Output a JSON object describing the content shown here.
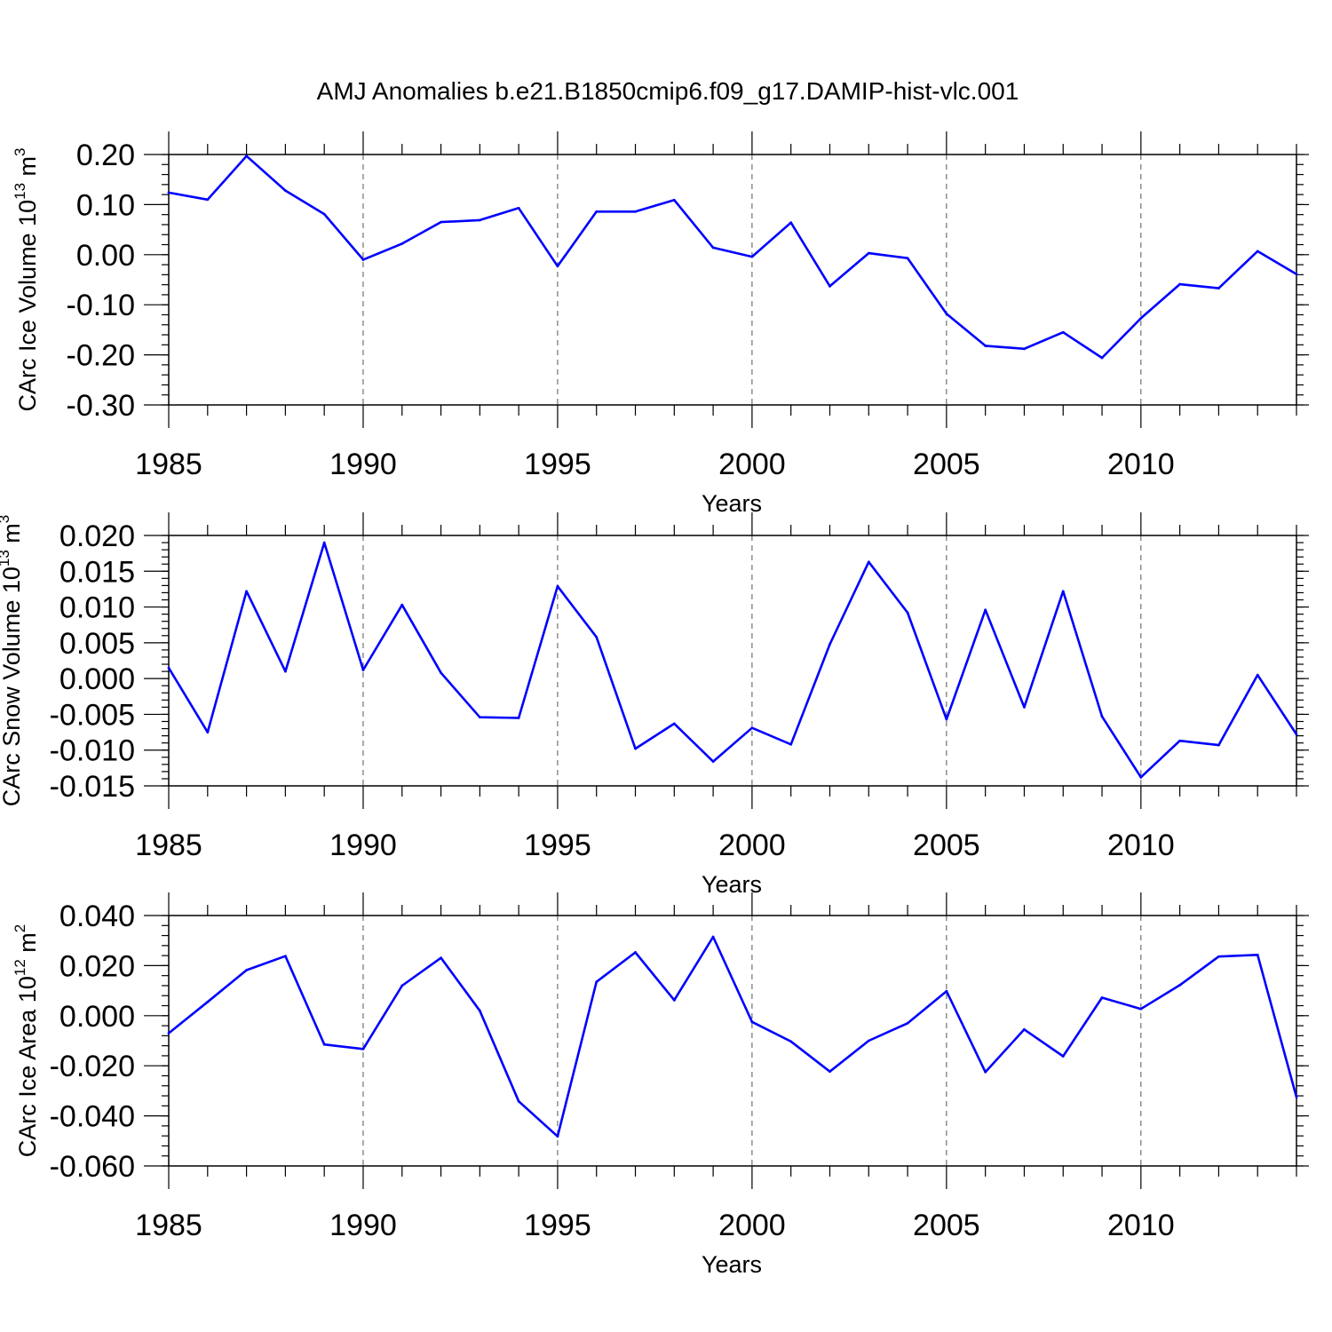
{
  "figure_title": "AMJ Anomalies b.e21.B1850cmip6.f09_g17.DAMIP-hist-vlc.001",
  "line_color": "#0000ff",
  "chart_data": [
    {
      "type": "line",
      "ylabel_main": "CArc Ice Volume 10",
      "ylabel_exp": "13",
      "ylabel_unit": " m",
      "ylabel_unit_exp": "3",
      "xlabel": "Years",
      "xlim": [
        1985,
        2014
      ],
      "ylim": [
        -0.3,
        0.2
      ],
      "xticks": [
        1985,
        1990,
        1995,
        2000,
        2005,
        2010
      ],
      "xtick_labels": [
        "1985",
        "1990",
        "1995",
        "2000",
        "2005",
        "2010"
      ],
      "yticks": [
        -0.3,
        -0.2,
        -0.1,
        0.0,
        0.1,
        0.2
      ],
      "ytick_labels": [
        "-0.30",
        "-0.20",
        "-0.10",
        "0.00",
        "0.10",
        "0.20"
      ],
      "yminor_step": 0.02,
      "grid": "dashed vertical at major x ticks",
      "x": [
        1985,
        1986,
        1987,
        1988,
        1989,
        1990,
        1991,
        1992,
        1993,
        1994,
        1995,
        1996,
        1997,
        1998,
        1999,
        2000,
        2001,
        2002,
        2003,
        2004,
        2005,
        2006,
        2007,
        2008,
        2009,
        2010,
        2011,
        2012,
        2013,
        2014
      ],
      "values": [
        0.124,
        0.11,
        0.197,
        0.128,
        0.081,
        -0.01,
        0.022,
        0.065,
        0.069,
        0.093,
        -0.023,
        0.086,
        0.086,
        0.109,
        0.014,
        -0.004,
        0.064,
        -0.063,
        0.003,
        -0.007,
        -0.118,
        -0.182,
        -0.188,
        -0.155,
        -0.206,
        -0.127,
        -0.059,
        -0.067,
        0.007,
        -0.039
      ]
    },
    {
      "type": "line",
      "ylabel_main": "CArc Snow Volume 10",
      "ylabel_exp": "13",
      "ylabel_unit": " m",
      "ylabel_unit_exp": "3",
      "xlabel": "Years",
      "xlim": [
        1985,
        2014
      ],
      "ylim": [
        -0.015,
        0.02
      ],
      "xticks": [
        1985,
        1990,
        1995,
        2000,
        2005,
        2010
      ],
      "xtick_labels": [
        "1985",
        "1990",
        "1995",
        "2000",
        "2005",
        "2010"
      ],
      "yticks": [
        -0.015,
        -0.01,
        -0.005,
        0.0,
        0.005,
        0.01,
        0.015,
        0.02
      ],
      "ytick_labels": [
        "-0.015",
        "-0.010",
        "-0.005",
        "0.000",
        "0.005",
        "0.010",
        "0.015",
        "0.020"
      ],
      "yminor_step": 0.001,
      "grid": "dashed vertical at major x ticks",
      "x": [
        1985,
        1986,
        1987,
        1988,
        1989,
        1990,
        1991,
        1992,
        1993,
        1994,
        1995,
        1996,
        1997,
        1998,
        1999,
        2000,
        2001,
        2002,
        2003,
        2004,
        2005,
        2006,
        2007,
        2008,
        2009,
        2010,
        2011,
        2012,
        2013,
        2014
      ],
      "values": [
        0.0015,
        -0.0075,
        0.0122,
        0.001,
        0.019,
        0.0012,
        0.0103,
        0.0008,
        -0.0054,
        -0.0055,
        0.0129,
        0.0058,
        -0.0098,
        -0.0063,
        -0.0116,
        -0.0069,
        -0.0092,
        0.0048,
        0.0163,
        0.0092,
        -0.0057,
        0.0096,
        -0.004,
        0.0122,
        -0.0053,
        -0.0138,
        -0.0087,
        -0.0093,
        0.0005,
        -0.0078
      ]
    },
    {
      "type": "line",
      "ylabel_main": "CArc Ice Area 10",
      "ylabel_exp": "12",
      "ylabel_unit": " m",
      "ylabel_unit_exp": "2",
      "xlabel": "Years",
      "xlim": [
        1985,
        2014
      ],
      "ylim": [
        -0.06,
        0.04
      ],
      "xticks": [
        1985,
        1990,
        1995,
        2000,
        2005,
        2010
      ],
      "xtick_labels": [
        "1985",
        "1990",
        "1995",
        "2000",
        "2005",
        "2010"
      ],
      "yticks": [
        -0.06,
        -0.04,
        -0.02,
        0.0,
        0.02,
        0.04
      ],
      "ytick_labels": [
        "-0.060",
        "-0.040",
        "-0.020",
        "0.000",
        "0.020",
        "0.040"
      ],
      "yminor_step": 0.004,
      "grid": "dashed vertical at major x ticks",
      "x": [
        1985,
        1986,
        1987,
        1988,
        1989,
        1990,
        1991,
        1992,
        1993,
        1994,
        1995,
        1996,
        1997,
        1998,
        1999,
        2000,
        2001,
        2002,
        2003,
        2004,
        2005,
        2006,
        2007,
        2008,
        2009,
        2010,
        2011,
        2012,
        2013,
        2014
      ],
      "values": [
        -0.007,
        0.0055,
        0.0182,
        0.0238,
        -0.0115,
        -0.0133,
        0.012,
        0.0231,
        0.002,
        -0.0342,
        -0.0482,
        0.0135,
        0.0253,
        0.0062,
        0.0315,
        -0.0025,
        -0.0103,
        -0.0223,
        -0.01,
        -0.003,
        0.0098,
        -0.0225,
        -0.0055,
        -0.0162,
        0.0072,
        0.0027,
        0.0122,
        0.0236,
        0.0243,
        -0.0325
      ]
    }
  ]
}
